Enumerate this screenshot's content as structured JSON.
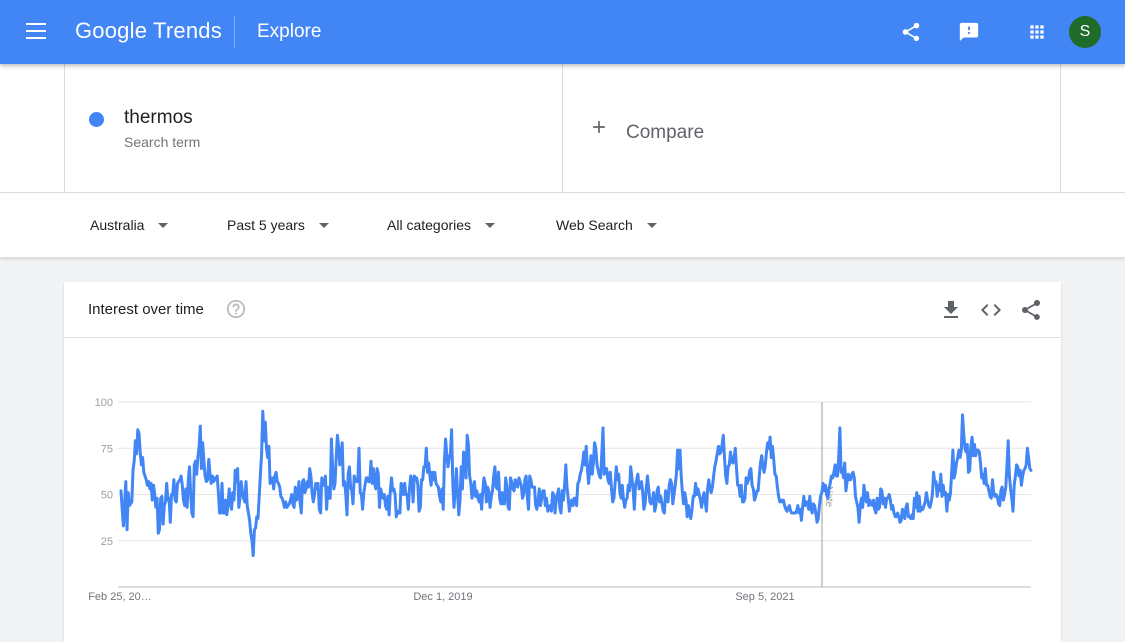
{
  "header": {
    "logo_text": "Google Trends",
    "page_title": "Explore",
    "avatar_initial": "S",
    "icons": [
      "menu-icon",
      "share-icon",
      "feedback-icon",
      "apps-icon"
    ],
    "accent": "#4285f4"
  },
  "term": {
    "name": "thermos",
    "subtitle": "Search term",
    "color": "#4285f4"
  },
  "compare": {
    "label": "Compare"
  },
  "filters": {
    "region": "Australia",
    "period": "Past 5 years",
    "category": "All categories",
    "search_type": "Web Search"
  },
  "card": {
    "title": "Interest over time",
    "icons": [
      "help-icon",
      "download-icon",
      "embed-icon",
      "share-icon"
    ]
  },
  "chart_data": {
    "type": "line",
    "series": [
      {
        "name": "thermos",
        "color": "#4285f4",
        "values": [
          52,
          42,
          33,
          45,
          57,
          31,
          51,
          44,
          45,
          46,
          63,
          68,
          79,
          72,
          85,
          83,
          73,
          66,
          70,
          62,
          60,
          58,
          55,
          57,
          53,
          56,
          47,
          55,
          50,
          43,
          48,
          29,
          31,
          48,
          49,
          34,
          44,
          46,
          56,
          47,
          48,
          35,
          50,
          50,
          58,
          47,
          46,
          56,
          57,
          58,
          60,
          55,
          47,
          44,
          53,
          43,
          58,
          65,
          50,
          40,
          38,
          66,
          68,
          61,
          70,
          76,
          87,
          64,
          78,
          68,
          60,
          57,
          58,
          69,
          61,
          56,
          60,
          57,
          59,
          58,
          60,
          51,
          40,
          40,
          56,
          40,
          40,
          47,
          39,
          44,
          53,
          45,
          42,
          51,
          47,
          63,
          57,
          64,
          43,
          48,
          57,
          51,
          48,
          46,
          57,
          44,
          40,
          36,
          29,
          25,
          17,
          31,
          32,
          38,
          37,
          49,
          61,
          72,
          95,
          79,
          89,
          75,
          70,
          76,
          56,
          57,
          59,
          53,
          60,
          62,
          57,
          56,
          54,
          49,
          48,
          46,
          43,
          46,
          43,
          44,
          45,
          47,
          50,
          45,
          43,
          54,
          47,
          48,
          57,
          46,
          40,
          57,
          58,
          51,
          53,
          57,
          54,
          64,
          60,
          51,
          46,
          50,
          56,
          53,
          56,
          42,
          40,
          59,
          56,
          55,
          60,
          42,
          54,
          48,
          48,
          80,
          65,
          53,
          56,
          70,
          82,
          76,
          66,
          70,
          78,
          55,
          57,
          50,
          39,
          61,
          65,
          54,
          52,
          45,
          60,
          58,
          57,
          57,
          75,
          51,
          50,
          42,
          51,
          55,
          59,
          59,
          57,
          57,
          68,
          56,
          64,
          56,
          53,
          64,
          61,
          43,
          53,
          50,
          48,
          50,
          44,
          42,
          49,
          39,
          52,
          59,
          52,
          53,
          50,
          38,
          41,
          40,
          40,
          56,
          55,
          50,
          56,
          50,
          50,
          42,
          53,
          60,
          58,
          46,
          60,
          59,
          59,
          55,
          41,
          43,
          58,
          58,
          65,
          65,
          75,
          62,
          67,
          60,
          55,
          62,
          58,
          62,
          56,
          55,
          54,
          49,
          46,
          53,
          42,
          68,
          80,
          71,
          65,
          70,
          72,
          85,
          56,
          43,
          53,
          64,
          50,
          39,
          47,
          65,
          53,
          73,
          70,
          59,
          82,
          77,
          60,
          56,
          48,
          53,
          57,
          49,
          52,
          48,
          46,
          50,
          42,
          52,
          59,
          56,
          46,
          54,
          52,
          43,
          49,
          52,
          60,
          65,
          54,
          53,
          62,
          48,
          45,
          51,
          45,
          45,
          59,
          54,
          43,
          42,
          59,
          57,
          53,
          52,
          58,
          55,
          54,
          59,
          57,
          55,
          48,
          50,
          58,
          60,
          49,
          42,
          60,
          58,
          54,
          54,
          54,
          44,
          42,
          47,
          53,
          44,
          48,
          52,
          52,
          44,
          48,
          41,
          43,
          44,
          41,
          51,
          50,
          40,
          47,
          50,
          53,
          43,
          40,
          52,
          47,
          55,
          66,
          54,
          48,
          41,
          46,
          47,
          44,
          48,
          48,
          44,
          56,
          57,
          61,
          63,
          67,
          73,
          66,
          76,
          64,
          56,
          64,
          71,
          61,
          67,
          78,
          75,
          66,
          63,
          60,
          59,
          72,
          86,
          61,
          64,
          64,
          58,
          56,
          62,
          53,
          46,
          48,
          56,
          65,
          58,
          61,
          51,
          48,
          55,
          47,
          43,
          47,
          48,
          55,
          52,
          65,
          59,
          53,
          42,
          55,
          58,
          61,
          53,
          54,
          57,
          51,
          42,
          45,
          54,
          60,
          53,
          46,
          45,
          46,
          51,
          41,
          44,
          52,
          54,
          46,
          49,
          45,
          41,
          40,
          52,
          50,
          46,
          55,
          58,
          56,
          45,
          50,
          55,
          61,
          74,
          64,
          74,
          60,
          51,
          45,
          51,
          47,
          38,
          44,
          40,
          37,
          42,
          49,
          49,
          56,
          50,
          53,
          50,
          47,
          43,
          48,
          51,
          46,
          41,
          53,
          58,
          53,
          51,
          54,
          60,
          65,
          68,
          72,
          76,
          72,
          73,
          77,
          82,
          70,
          60,
          56,
          65,
          66,
          73,
          68,
          67,
          70,
          75,
          64,
          55,
          55,
          49,
          55,
          46,
          46,
          48,
          59,
          56,
          58,
          63,
          64,
          55,
          53,
          47,
          49,
          52,
          52,
          60,
          67,
          71,
          65,
          62,
          66,
          73,
          78,
          75,
          81,
          70,
          76,
          69,
          61,
          60,
          54,
          49,
          46,
          47,
          46,
          47,
          44,
          42,
          41,
          43,
          44,
          41,
          40,
          40,
          40,
          40,
          41,
          44,
          40,
          42,
          36,
          43,
          49,
          44,
          46,
          46,
          42,
          49,
          42,
          40,
          45,
          44,
          40,
          35,
          37,
          44,
          49,
          51,
          56,
          52,
          55,
          50,
          48,
          53,
          56,
          60,
          59,
          62,
          66,
          60,
          60,
          70,
          86,
          62,
          64,
          59,
          67,
          52,
          57,
          61,
          58,
          58,
          61,
          62,
          59,
          49,
          46,
          43,
          35,
          44,
          48,
          43,
          55,
          50,
          46,
          51,
          44,
          47,
          45,
          44,
          47,
          42,
          40,
          48,
          42,
          43,
          53,
          52,
          45,
          48,
          43,
          48,
          48,
          50,
          47,
          42,
          44,
          40,
          38,
          38,
          40,
          38,
          35,
          36,
          42,
          40,
          37,
          43,
          45,
          38,
          38,
          37,
          39,
          37,
          48,
          43,
          51,
          41,
          49,
          41,
          43,
          42,
          44,
          46,
          51,
          47,
          44,
          43,
          46,
          50,
          62,
          56,
          57,
          49,
          55,
          52,
          61,
          49,
          55,
          50,
          51,
          41,
          50,
          47,
          51,
          62,
          74,
          59,
          62,
          67,
          70,
          74,
          70,
          74,
          93,
          83,
          75,
          73,
          77,
          62,
          63,
          76,
          81,
          71,
          77,
          71,
          74,
          74,
          73,
          67,
          59,
          61,
          56,
          64,
          55,
          55,
          52,
          49,
          48,
          58,
          51,
          49,
          50,
          49,
          45,
          44,
          52,
          54,
          47,
          50,
          54,
          66,
          79,
          60,
          53,
          48,
          41,
          55,
          60,
          66,
          65,
          60,
          63,
          55,
          60,
          63,
          64,
          66,
          75,
          70,
          64,
          63
        ]
      }
    ],
    "x_tick_labels": [
      "Feb 25, 20…",
      "Dec 1, 2019",
      "Sep 5, 2021"
    ],
    "y_ticks": [
      25,
      50,
      75,
      100
    ],
    "ylim": [
      0,
      100
    ],
    "annotation": "Note",
    "grid": true,
    "legend": "none"
  }
}
